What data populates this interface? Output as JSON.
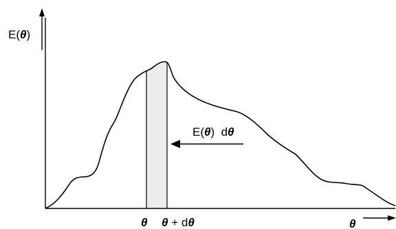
{
  "diagram": {
    "y_axis_label": {
      "prefix": "E(",
      "symbol": "θ",
      "suffix": ")"
    },
    "x_axis_label": "θ",
    "strip_left_label": "θ",
    "strip_right_label": {
      "symbol": "θ",
      "mid": " + d",
      "symbol2": "θ"
    },
    "annotation": {
      "prefix": "E(",
      "symbol": "θ",
      "mid": ")  d",
      "symbol2": "θ"
    },
    "colors": {
      "curve": "#000000",
      "strip_fill": "#ececec",
      "axes": "#000000"
    }
  }
}
